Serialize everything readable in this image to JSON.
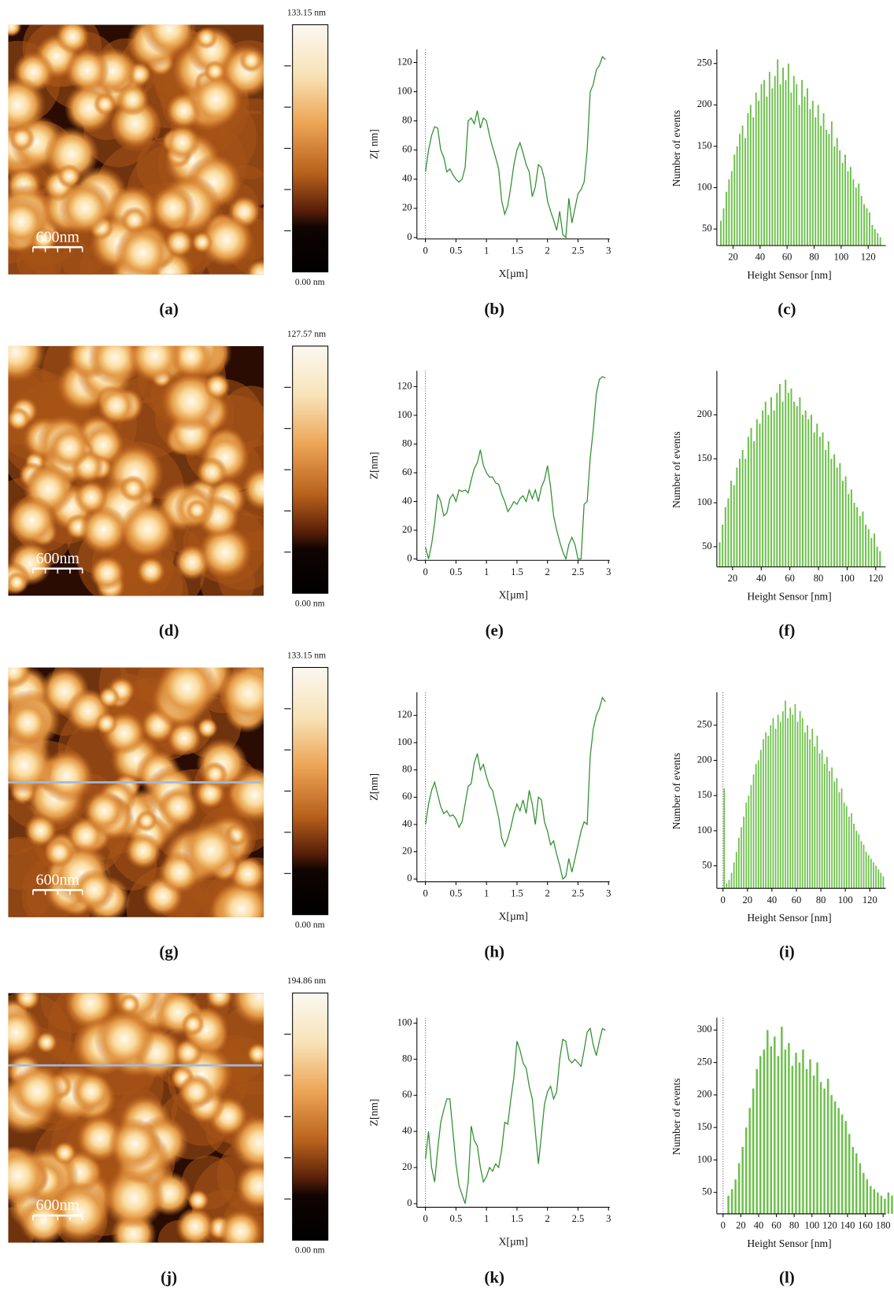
{
  "chart_data": [
    {
      "type": "image",
      "colorbar_max": "133.15 nm",
      "colorbar_min": "0.00 nm",
      "scale_label": "600nm",
      "caption": "(a)",
      "profile_line": false
    },
    {
      "type": "line",
      "caption": "(b)",
      "x_label": "X[µm]",
      "y_label": "Z[ nm]",
      "color": "#2f8f2f",
      "xlim": [
        -0.14,
        3.02
      ],
      "ylim": [
        -1,
        129
      ],
      "xticks": [
        0,
        0.5,
        1,
        1.5,
        2,
        2.5,
        3
      ],
      "yticks": [
        0,
        20,
        40,
        60,
        80,
        100,
        120
      ],
      "x": [
        0,
        0.05,
        0.1,
        0.15,
        0.2,
        0.25,
        0.3,
        0.35,
        0.4,
        0.45,
        0.5,
        0.55,
        0.6,
        0.65,
        0.7,
        0.75,
        0.8,
        0.85,
        0.9,
        0.95,
        1,
        1.05,
        1.1,
        1.15,
        1.2,
        1.25,
        1.3,
        1.35,
        1.4,
        1.45,
        1.5,
        1.55,
        1.6,
        1.65,
        1.7,
        1.75,
        1.8,
        1.85,
        1.9,
        1.95,
        2,
        2.05,
        2.1,
        2.15,
        2.2,
        2.25,
        2.3,
        2.35,
        2.4,
        2.45,
        2.5,
        2.55,
        2.6,
        2.65,
        2.7,
        2.75,
        2.8,
        2.85,
        2.9,
        2.95
      ],
      "values": [
        45,
        60,
        70,
        76,
        75,
        60,
        55,
        45,
        47,
        43,
        40,
        38,
        40,
        48,
        80,
        82,
        78,
        87,
        75,
        82,
        80,
        70,
        62,
        55,
        47,
        25,
        16,
        22,
        35,
        50,
        60,
        65,
        58,
        50,
        45,
        28,
        35,
        50,
        48,
        40,
        25,
        18,
        12,
        5,
        18,
        2,
        0,
        27,
        10,
        20,
        30,
        33,
        38,
        60,
        100,
        105,
        115,
        118,
        124,
        122
      ]
    },
    {
      "type": "bar",
      "caption": "(c)",
      "x_label": "Height Sensor [nm]",
      "y_label": "Number of events",
      "color": "#6cc04a",
      "xlim": [
        8,
        133
      ],
      "ylim": [
        30,
        267
      ],
      "xticks": [
        20,
        40,
        60,
        80,
        100,
        120
      ],
      "yticks": [
        50,
        100,
        150,
        200,
        250
      ],
      "x": [
        11,
        13,
        15,
        17,
        19,
        21,
        23,
        25,
        27,
        29,
        31,
        33,
        35,
        37,
        39,
        41,
        43,
        45,
        47,
        49,
        51,
        53,
        55,
        57,
        59,
        61,
        63,
        65,
        67,
        69,
        71,
        73,
        75,
        77,
        79,
        81,
        83,
        85,
        87,
        89,
        91,
        93,
        95,
        97,
        99,
        101,
        103,
        105,
        107,
        109,
        111,
        113,
        115,
        117,
        119,
        121,
        123,
        125,
        127,
        129
      ],
      "values": [
        60,
        75,
        95,
        110,
        120,
        140,
        150,
        165,
        175,
        160,
        190,
        200,
        185,
        215,
        205,
        225,
        230,
        210,
        240,
        220,
        235,
        255,
        225,
        245,
        230,
        250,
        215,
        235,
        225,
        200,
        230,
        210,
        220,
        195,
        205,
        185,
        200,
        175,
        190,
        170,
        165,
        180,
        150,
        160,
        145,
        130,
        140,
        120,
        125,
        110,
        100,
        105,
        90,
        80,
        75,
        70,
        55,
        50,
        45,
        40
      ]
    },
    {
      "type": "image",
      "colorbar_max": "127.57 nm",
      "colorbar_min": "0.00 nm",
      "scale_label": "600nm",
      "caption": "(d)",
      "profile_line": false
    },
    {
      "type": "line",
      "caption": "(e)",
      "x_label": "X[µm]",
      "y_label": "Z[nm]",
      "color": "#2f8f2f",
      "xlim": [
        -0.14,
        3.02
      ],
      "ylim": [
        -1,
        131
      ],
      "xticks": [
        0,
        0.5,
        1,
        1.5,
        2,
        2.5,
        3
      ],
      "yticks": [
        0,
        20,
        40,
        60,
        80,
        100,
        120
      ],
      "x": [
        0,
        0.05,
        0.1,
        0.15,
        0.2,
        0.25,
        0.3,
        0.35,
        0.4,
        0.45,
        0.5,
        0.55,
        0.6,
        0.65,
        0.7,
        0.75,
        0.8,
        0.85,
        0.9,
        0.95,
        1,
        1.05,
        1.1,
        1.15,
        1.2,
        1.25,
        1.3,
        1.35,
        1.4,
        1.45,
        1.5,
        1.55,
        1.6,
        1.65,
        1.7,
        1.75,
        1.8,
        1.85,
        1.9,
        1.95,
        2,
        2.05,
        2.1,
        2.15,
        2.2,
        2.25,
        2.3,
        2.35,
        2.4,
        2.45,
        2.5,
        2.55,
        2.6,
        2.65,
        2.7,
        2.75,
        2.8,
        2.85,
        2.9,
        2.95
      ],
      "values": [
        8,
        0,
        10,
        25,
        45,
        40,
        30,
        32,
        42,
        45,
        40,
        48,
        47,
        48,
        46,
        55,
        63,
        67,
        76,
        65,
        60,
        57,
        57,
        53,
        52,
        45,
        40,
        33,
        36,
        40,
        38,
        42,
        44,
        40,
        48,
        42,
        48,
        40,
        50,
        55,
        65,
        50,
        30,
        20,
        12,
        5,
        0,
        10,
        15,
        10,
        0,
        0,
        38,
        40,
        70,
        90,
        115,
        125,
        127,
        126
      ]
    },
    {
      "type": "bar",
      "caption": "(f)",
      "x_label": "Height Sensor [nm]",
      "y_label": "Number of events",
      "color": "#6cc04a",
      "xlim": [
        9,
        127
      ],
      "ylim": [
        27,
        250
      ],
      "xticks": [
        20,
        40,
        60,
        80,
        100,
        120
      ],
      "yticks": [
        50,
        100,
        150,
        200
      ],
      "x": [
        11,
        13,
        15,
        17,
        19,
        21,
        23,
        25,
        27,
        29,
        31,
        33,
        35,
        37,
        39,
        41,
        43,
        45,
        47,
        49,
        51,
        53,
        55,
        57,
        59,
        61,
        63,
        65,
        67,
        69,
        71,
        73,
        75,
        77,
        79,
        81,
        83,
        85,
        87,
        89,
        91,
        93,
        95,
        97,
        99,
        101,
        103,
        105,
        107,
        109,
        111,
        113,
        115,
        117,
        119,
        121,
        123
      ],
      "values": [
        55,
        75,
        95,
        105,
        125,
        120,
        140,
        150,
        160,
        150,
        175,
        185,
        170,
        195,
        190,
        205,
        215,
        200,
        220,
        205,
        225,
        235,
        215,
        240,
        225,
        230,
        215,
        210,
        220,
        200,
        205,
        195,
        200,
        180,
        190,
        175,
        180,
        160,
        170,
        150,
        155,
        140,
        145,
        125,
        130,
        110,
        115,
        100,
        95,
        85,
        90,
        75,
        70,
        60,
        65,
        50,
        45
      ]
    },
    {
      "type": "image",
      "colorbar_max": "133.15 nm",
      "colorbar_min": "0.00 nm",
      "scale_label": "600nm",
      "caption": "(g)",
      "profile_line": true
    },
    {
      "type": "line",
      "caption": "(h)",
      "x_label": "X[µm]",
      "y_label": "Z[nm]",
      "color": "#2f8f2f",
      "xlim": [
        -0.14,
        3.02
      ],
      "ylim": [
        -2,
        137
      ],
      "xticks": [
        0,
        0.5,
        1,
        1.5,
        2,
        2.5,
        3
      ],
      "yticks": [
        0,
        20,
        40,
        60,
        80,
        100,
        120
      ],
      "x": [
        0,
        0.05,
        0.1,
        0.15,
        0.2,
        0.25,
        0.3,
        0.35,
        0.4,
        0.45,
        0.5,
        0.55,
        0.6,
        0.65,
        0.7,
        0.75,
        0.8,
        0.85,
        0.9,
        0.95,
        1,
        1.05,
        1.1,
        1.15,
        1.2,
        1.25,
        1.3,
        1.35,
        1.4,
        1.45,
        1.5,
        1.55,
        1.6,
        1.65,
        1.7,
        1.75,
        1.8,
        1.85,
        1.9,
        1.95,
        2,
        2.05,
        2.1,
        2.15,
        2.2,
        2.25,
        2.3,
        2.35,
        2.4,
        2.45,
        2.5,
        2.55,
        2.6,
        2.65,
        2.7,
        2.75,
        2.8,
        2.85,
        2.9,
        2.95
      ],
      "values": [
        40,
        55,
        65,
        71,
        62,
        53,
        48,
        50,
        46,
        47,
        44,
        38,
        42,
        55,
        68,
        70,
        85,
        92,
        80,
        84,
        75,
        68,
        65,
        55,
        45,
        30,
        24,
        30,
        38,
        48,
        55,
        50,
        58,
        48,
        65,
        55,
        40,
        60,
        58,
        42,
        35,
        25,
        28,
        18,
        10,
        0,
        2,
        15,
        5,
        15,
        25,
        35,
        42,
        40,
        90,
        110,
        120,
        125,
        133,
        130
      ]
    },
    {
      "type": "bar",
      "caption": "(i)",
      "x_label": "Height Sensor [nm]",
      "y_label": "Number of events",
      "color": "#6cc04a",
      "xlim": [
        -5,
        133
      ],
      "ylim": [
        18,
        297
      ],
      "xticks": [
        0,
        20,
        40,
        60,
        80,
        100,
        120
      ],
      "yticks": [
        50,
        100,
        150,
        200,
        250
      ],
      "x": [
        1,
        3,
        5,
        7,
        9,
        11,
        13,
        15,
        17,
        19,
        21,
        23,
        25,
        27,
        29,
        31,
        33,
        35,
        37,
        39,
        41,
        43,
        45,
        47,
        49,
        51,
        53,
        55,
        57,
        59,
        61,
        63,
        65,
        67,
        69,
        71,
        73,
        75,
        77,
        79,
        81,
        83,
        85,
        87,
        89,
        91,
        93,
        95,
        97,
        99,
        101,
        103,
        105,
        107,
        109,
        111,
        113,
        115,
        117,
        119,
        121,
        123,
        125,
        127,
        129,
        131
      ],
      "values": [
        160,
        25,
        30,
        40,
        55,
        70,
        90,
        105,
        120,
        140,
        150,
        165,
        180,
        195,
        200,
        215,
        230,
        240,
        235,
        250,
        260,
        245,
        265,
        255,
        270,
        285,
        260,
        275,
        265,
        280,
        255,
        270,
        260,
        240,
        250,
        230,
        245,
        220,
        235,
        210,
        215,
        195,
        205,
        185,
        190,
        170,
        175,
        155,
        160,
        140,
        135,
        120,
        125,
        110,
        100,
        95,
        85,
        80,
        70,
        65,
        60,
        55,
        50,
        45,
        40,
        35
      ]
    },
    {
      "type": "image",
      "colorbar_max": "194.86 nm",
      "colorbar_min": "0.00 nm",
      "scale_label": "600nm",
      "caption": "(j)",
      "profile_line": true
    },
    {
      "type": "line",
      "caption": "(k)",
      "x_label": "X[µm]",
      "y_label": "Z[nm]",
      "color": "#2f8f2f",
      "xlim": [
        -0.14,
        3.02
      ],
      "ylim": [
        -2,
        103
      ],
      "xticks": [
        0,
        0.5,
        1,
        1.5,
        2,
        2.5,
        3
      ],
      "yticks": [
        0,
        20,
        40,
        60,
        80,
        100
      ],
      "x": [
        0,
        0.05,
        0.1,
        0.15,
        0.2,
        0.25,
        0.3,
        0.35,
        0.4,
        0.45,
        0.5,
        0.55,
        0.6,
        0.65,
        0.7,
        0.75,
        0.8,
        0.85,
        0.9,
        0.95,
        1,
        1.05,
        1.1,
        1.15,
        1.2,
        1.25,
        1.3,
        1.35,
        1.4,
        1.45,
        1.5,
        1.55,
        1.6,
        1.65,
        1.7,
        1.75,
        1.8,
        1.85,
        1.9,
        1.95,
        2,
        2.05,
        2.1,
        2.15,
        2.2,
        2.25,
        2.3,
        2.35,
        2.4,
        2.45,
        2.5,
        2.55,
        2.6,
        2.65,
        2.7,
        2.75,
        2.8,
        2.85,
        2.9,
        2.95
      ],
      "values": [
        25,
        40,
        20,
        12,
        30,
        45,
        52,
        58,
        58,
        40,
        22,
        10,
        5,
        0,
        12,
        43,
        35,
        32,
        20,
        12,
        15,
        20,
        18,
        22,
        20,
        30,
        45,
        44,
        58,
        70,
        90,
        85,
        78,
        75,
        65,
        58,
        40,
        22,
        38,
        55,
        62,
        65,
        58,
        62,
        80,
        91,
        90,
        80,
        78,
        80,
        78,
        76,
        85,
        95,
        97,
        88,
        82,
        90,
        97,
        96
      ]
    },
    {
      "type": "bar",
      "caption": "(l)",
      "x_label": "Height Sensor [nm]",
      "y_label": "Number of events",
      "color": "#6cc04a",
      "xlim": [
        -7,
        183
      ],
      "ylim": [
        17,
        319
      ],
      "xticks": [
        0,
        20,
        40,
        60,
        80,
        100,
        120,
        140,
        160,
        180
      ],
      "yticks": [
        50,
        100,
        150,
        200,
        250,
        300
      ],
      "x": [
        6,
        10,
        14,
        18,
        22,
        26,
        30,
        34,
        38,
        42,
        46,
        50,
        54,
        58,
        62,
        66,
        70,
        74,
        78,
        82,
        86,
        90,
        94,
        98,
        102,
        106,
        110,
        114,
        118,
        122,
        126,
        130,
        134,
        138,
        142,
        146,
        150,
        154,
        158,
        162,
        166,
        170,
        174,
        178,
        182,
        186,
        190
      ],
      "values": [
        45,
        55,
        70,
        95,
        120,
        150,
        180,
        210,
        240,
        260,
        270,
        300,
        275,
        290,
        260,
        305,
        270,
        280,
        245,
        265,
        250,
        270,
        240,
        255,
        230,
        250,
        220,
        210,
        225,
        200,
        190,
        180,
        170,
        160,
        140,
        120,
        110,
        95,
        80,
        70,
        60,
        55,
        50,
        45,
        40,
        50,
        45
      ]
    }
  ]
}
